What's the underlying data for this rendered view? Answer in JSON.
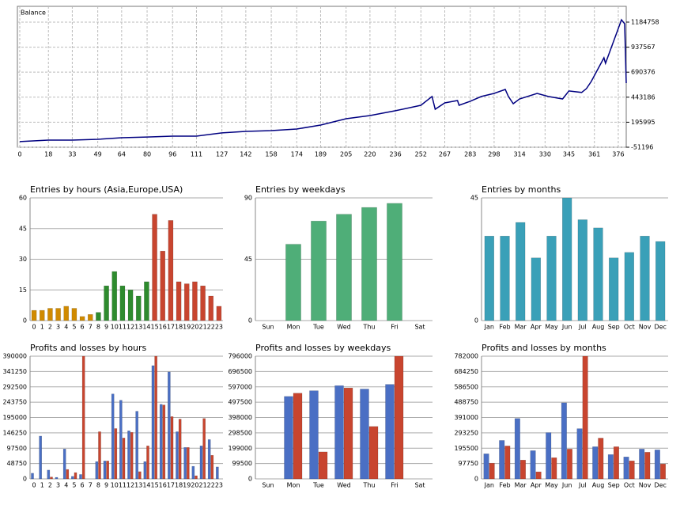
{
  "chart_data": [
    {
      "type": "line",
      "title": "Balance",
      "color": "#000080",
      "grid": true,
      "x": [
        0,
        18,
        33,
        49,
        64,
        80,
        96,
        111,
        127,
        142,
        158,
        174,
        189,
        205,
        220,
        236,
        252,
        259,
        261,
        267,
        275,
        276,
        283,
        290,
        298,
        305,
        307,
        310,
        314,
        325,
        332,
        341,
        345,
        353,
        356,
        359,
        367,
        368,
        378,
        380,
        381
      ],
      "values": [
        4000,
        19000,
        19000,
        27000,
        43000,
        50000,
        58000,
        58000,
        90000,
        105000,
        113000,
        129000,
        168000,
        230000,
        262000,
        309000,
        363000,
        450000,
        324000,
        387000,
        410000,
        363000,
        403000,
        450000,
        481000,
        520000,
        450000,
        379000,
        426000,
        481000,
        450000,
        426000,
        505000,
        490000,
        528000,
        598000,
        833000,
        778000,
        1208000,
        1169000,
        582000
      ],
      "xlim": [
        0,
        381
      ],
      "xticks": [
        0,
        18,
        33,
        49,
        64,
        80,
        96,
        111,
        127,
        142,
        158,
        174,
        189,
        205,
        220,
        236,
        252,
        267,
        283,
        298,
        314,
        330,
        345,
        361,
        376
      ],
      "ylim": [
        -51196,
        1341000
      ],
      "yticks": [
        -51196,
        195995,
        443186,
        690376,
        937567,
        1184758
      ]
    },
    {
      "type": "bar",
      "title": "Entries by hours (Asia,Europe,USA)",
      "categories": [
        "0",
        "1",
        "2",
        "3",
        "4",
        "5",
        "6",
        "7",
        "8",
        "9",
        "10",
        "11",
        "12",
        "13",
        "14",
        "15",
        "16",
        "17",
        "18",
        "19",
        "20",
        "21",
        "22",
        "23"
      ],
      "values": [
        5,
        5,
        6,
        6,
        7,
        6,
        2,
        3,
        4,
        17,
        24,
        17,
        15,
        12,
        19,
        52,
        34,
        49,
        19,
        18,
        19,
        17,
        12,
        7
      ],
      "colors": [
        "#d08a00",
        "#d08a00",
        "#d08a00",
        "#d08a00",
        "#d08a00",
        "#d08a00",
        "#d08a00",
        "#d08a00",
        "#2e8b2e",
        "#2e8b2e",
        "#2e8b2e",
        "#2e8b2e",
        "#2e8b2e",
        "#2e8b2e",
        "#2e8b2e",
        "#c8452f",
        "#c8452f",
        "#c8452f",
        "#c8452f",
        "#c8452f",
        "#c8452f",
        "#c8452f",
        "#c8452f",
        "#c8452f"
      ],
      "ylim": [
        0,
        60
      ],
      "yticks": [
        0,
        15,
        30,
        45,
        60
      ],
      "grid": true
    },
    {
      "type": "bar",
      "title": "Entries by weekdays",
      "categories": [
        "Sun",
        "Mon",
        "Tue",
        "Wed",
        "Thu",
        "Fri",
        "Sat"
      ],
      "values": [
        0,
        56,
        73,
        78,
        83,
        86,
        0
      ],
      "color": "#4fae78",
      "ylim": [
        0,
        90
      ],
      "yticks": [
        0,
        45,
        90
      ],
      "grid": true
    },
    {
      "type": "bar",
      "title": "Entries by months",
      "categories": [
        "Jan",
        "Feb",
        "Mar",
        "Apr",
        "May",
        "Jun",
        "Jul",
        "Aug",
        "Sep",
        "Oct",
        "Nov",
        "Dec"
      ],
      "values": [
        31,
        31,
        36,
        23,
        31,
        45,
        37,
        34,
        23,
        25,
        31,
        29
      ],
      "color": "#3aa0b8",
      "ylim": [
        0,
        45
      ],
      "yticks": [
        0,
        45
      ],
      "grid": true
    },
    {
      "type": "bar",
      "title": "Profits and losses by hours",
      "categories": [
        "0",
        "1",
        "2",
        "3",
        "4",
        "5",
        "6",
        "7",
        "8",
        "9",
        "10",
        "11",
        "12",
        "13",
        "14",
        "15",
        "16",
        "17",
        "18",
        "19",
        "20",
        "21",
        "22",
        "23"
      ],
      "series": [
        {
          "color": "#4a6fc4",
          "values": [
            18000,
            136000,
            28000,
            5000,
            95000,
            8000,
            14000,
            0,
            55000,
            57000,
            270000,
            250000,
            153000,
            215000,
            55000,
            360000,
            237000,
            340000,
            150000,
            100000,
            40000,
            105000,
            125000,
            38000
          ]
        },
        {
          "color": "#c8452f",
          "values": [
            0,
            0,
            6000,
            0,
            30000,
            20000,
            390000,
            0,
            150000,
            57000,
            160000,
            130000,
            148000,
            23000,
            105000,
            390000,
            235000,
            198000,
            190000,
            100000,
            10000,
            192000,
            75000,
            0
          ]
        }
      ],
      "ylim": [
        0,
        390000
      ],
      "yticks": [
        0,
        48750,
        97500,
        146250,
        195000,
        243750,
        292500,
        341250,
        390000
      ],
      "grid": true
    },
    {
      "type": "bar",
      "title": "Profits and losses by weekdays",
      "categories": [
        "Sun",
        "Mon",
        "Tue",
        "Wed",
        "Thu",
        "Fri",
        "Sat"
      ],
      "series": [
        {
          "color": "#4a6fc4",
          "values": [
            0,
            535000,
            572000,
            605000,
            583000,
            613000,
            0
          ]
        },
        {
          "color": "#c8452f",
          "values": [
            0,
            556000,
            175000,
            590000,
            340000,
            796000,
            0
          ]
        }
      ],
      "ylim": [
        0,
        796000
      ],
      "yticks": [
        0,
        99500,
        199000,
        298500,
        398000,
        497500,
        597000,
        696500,
        796000
      ],
      "grid": true
    },
    {
      "type": "bar",
      "title": "Profits and losses by months",
      "categories": [
        "Jan",
        "Feb",
        "Mar",
        "Apr",
        "May",
        "Jun",
        "Jul",
        "Aug",
        "Sep",
        "Oct",
        "Nov",
        "Dec"
      ],
      "series": [
        {
          "color": "#4a6fc4",
          "values": [
            160000,
            245000,
            385000,
            180000,
            295000,
            485000,
            320000,
            205000,
            155000,
            140000,
            190000,
            185000
          ]
        },
        {
          "color": "#c8452f",
          "values": [
            100000,
            210000,
            120000,
            45000,
            135000,
            190000,
            782000,
            260000,
            205000,
            115000,
            170000,
            95000
          ]
        }
      ],
      "ylim": [
        0,
        782000
      ],
      "yticks": [
        0,
        97750,
        195500,
        293250,
        391000,
        488750,
        586500,
        684250,
        782000
      ],
      "grid": true
    }
  ]
}
